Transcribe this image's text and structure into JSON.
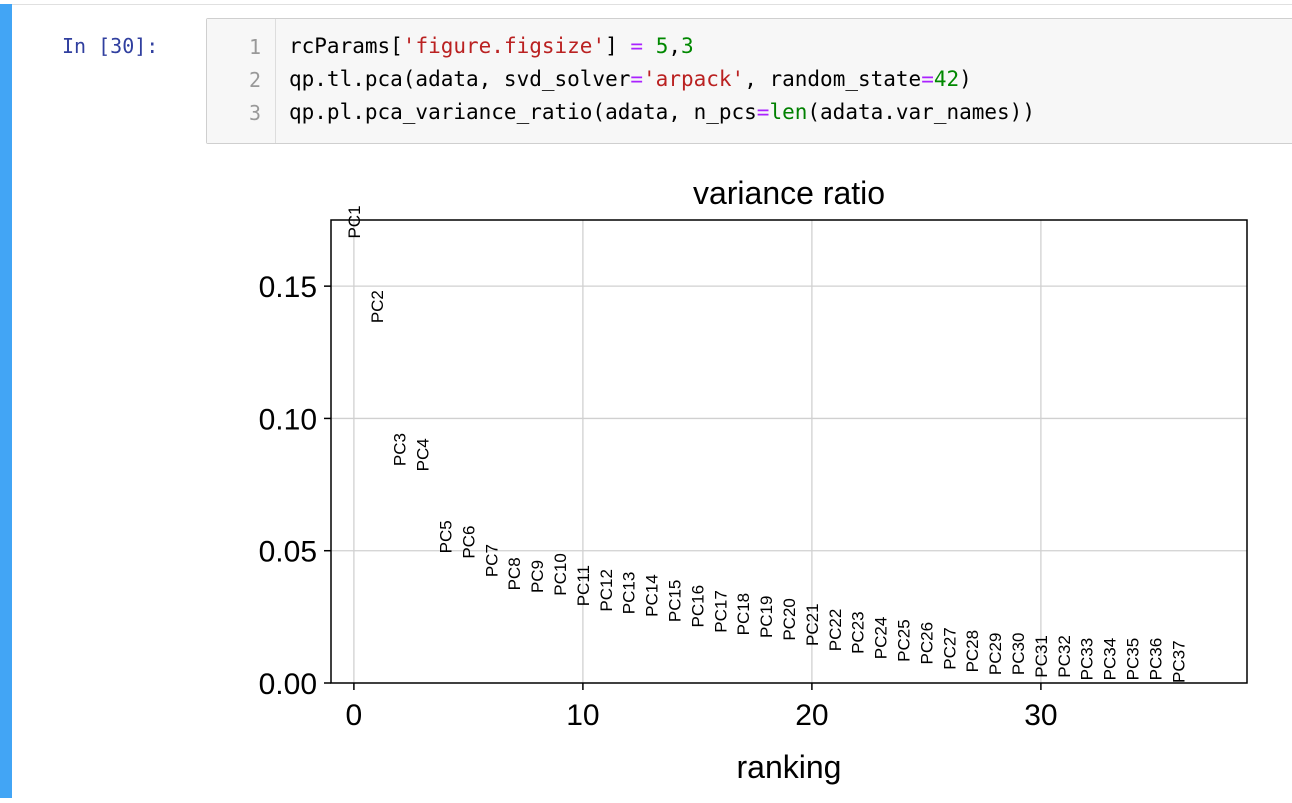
{
  "cell": {
    "prompt": "In [30]:",
    "line_numbers": [
      "1",
      "2",
      "3"
    ],
    "code": {
      "line1": {
        "a": "rcParams[",
        "b": "'figure.figsize'",
        "c": "] ",
        "d": "=",
        "e": " ",
        "f": "5",
        "g": ",",
        "h": "3"
      },
      "line2": {
        "a": "qp.tl.pca(adata, svd_solver",
        "b": "=",
        "c": "'arpack'",
        "d": ", random_state",
        "e": "=",
        "f": "42",
        "g": ")"
      },
      "line3": {
        "a": "qp.pl.pca_variance_ratio(adata, n_pcs",
        "b": "=",
        "c": "len",
        "d": "(adata.var_names))"
      }
    }
  },
  "chart_data": {
    "type": "scatter",
    "title": "variance ratio",
    "xlabel": "ranking",
    "ylabel": "",
    "xlim": [
      -1,
      39
    ],
    "ylim": [
      0,
      0.175
    ],
    "xticks": [
      "0",
      "10",
      "20",
      "30"
    ],
    "xtick_values": [
      0,
      10,
      20,
      30
    ],
    "yticks": [
      "0.00",
      "0.05",
      "0.10",
      "0.15"
    ],
    "ytick_values": [
      0.0,
      0.05,
      0.1,
      0.15
    ],
    "grid": true,
    "points": [
      {
        "label": "PC1",
        "x": 0,
        "y": 0.168
      },
      {
        "label": "PC2",
        "x": 1,
        "y": 0.136
      },
      {
        "label": "PC3",
        "x": 2,
        "y": 0.082
      },
      {
        "label": "PC4",
        "x": 3,
        "y": 0.08
      },
      {
        "label": "PC5",
        "x": 4,
        "y": 0.049
      },
      {
        "label": "PC6",
        "x": 5,
        "y": 0.047
      },
      {
        "label": "PC7",
        "x": 6,
        "y": 0.04
      },
      {
        "label": "PC8",
        "x": 7,
        "y": 0.035
      },
      {
        "label": "PC9",
        "x": 8,
        "y": 0.034
      },
      {
        "label": "PC10",
        "x": 9,
        "y": 0.033
      },
      {
        "label": "PC11",
        "x": 10,
        "y": 0.029
      },
      {
        "label": "PC12",
        "x": 11,
        "y": 0.027
      },
      {
        "label": "PC13",
        "x": 12,
        "y": 0.026
      },
      {
        "label": "PC14",
        "x": 13,
        "y": 0.025
      },
      {
        "label": "PC15",
        "x": 14,
        "y": 0.023
      },
      {
        "label": "PC16",
        "x": 15,
        "y": 0.021
      },
      {
        "label": "PC17",
        "x": 16,
        "y": 0.019
      },
      {
        "label": "PC18",
        "x": 17,
        "y": 0.018
      },
      {
        "label": "PC19",
        "x": 18,
        "y": 0.017
      },
      {
        "label": "PC20",
        "x": 19,
        "y": 0.016
      },
      {
        "label": "PC21",
        "x": 20,
        "y": 0.014
      },
      {
        "label": "PC22",
        "x": 21,
        "y": 0.012
      },
      {
        "label": "PC23",
        "x": 22,
        "y": 0.011
      },
      {
        "label": "PC24",
        "x": 23,
        "y": 0.009
      },
      {
        "label": "PC25",
        "x": 24,
        "y": 0.008
      },
      {
        "label": "PC26",
        "x": 25,
        "y": 0.007
      },
      {
        "label": "PC27",
        "x": 26,
        "y": 0.005
      },
      {
        "label": "PC28",
        "x": 27,
        "y": 0.004
      },
      {
        "label": "PC29",
        "x": 28,
        "y": 0.003
      },
      {
        "label": "PC30",
        "x": 29,
        "y": 0.003
      },
      {
        "label": "PC31",
        "x": 30,
        "y": 0.002
      },
      {
        "label": "PC32",
        "x": 31,
        "y": 0.002
      },
      {
        "label": "PC33",
        "x": 32,
        "y": 0.001
      },
      {
        "label": "PC34",
        "x": 33,
        "y": 0.001
      },
      {
        "label": "PC35",
        "x": 34,
        "y": 0.001
      },
      {
        "label": "PC36",
        "x": 35,
        "y": 0.001
      },
      {
        "label": "PC37",
        "x": 36,
        "y": 0.0
      }
    ]
  },
  "colors": {
    "selected_cell_bar": "#42a5f5",
    "prompt": "#303f9f",
    "string": "#ba2121",
    "number": "#008800",
    "operator": "#aa22ff",
    "builtin": "#008000",
    "grid": "#d0d0d0"
  }
}
